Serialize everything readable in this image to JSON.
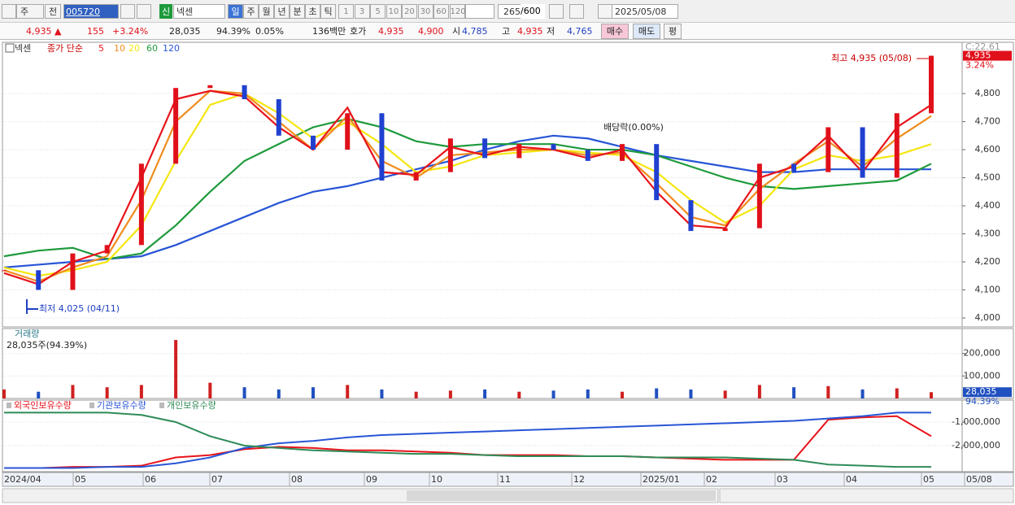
{
  "toolbar": {
    "market": "주",
    "prev": "전",
    "code": "005720",
    "badge": "신",
    "name": "넥센",
    "periods": [
      "일",
      "주",
      "월",
      "년",
      "분",
      "초",
      "틱"
    ],
    "intervals": [
      "1",
      "3",
      "5",
      "10",
      "20",
      "30",
      "60",
      "120"
    ],
    "count": "265",
    "count_max": "/600",
    "date": "2025/05/08"
  },
  "quote": {
    "price": "4,935 ▲",
    "change": "155",
    "change_pct": "+3.24%",
    "volume": "28,035",
    "volume_ratio": "94.39%",
    "turnover": "0.05%",
    "amount": "136백만",
    "ask_label": "호가",
    "ask": "4,935",
    "bid": "4,900",
    "open_label": "시",
    "open": "4,785",
    "high_label": "고",
    "high": "4,935",
    "low_label": "저",
    "low": "4,765",
    "buy": "매수",
    "sell": "매도",
    "avg": "평"
  },
  "x_axis": {
    "labels": [
      "2024/04",
      "05",
      "06",
      "07",
      "08",
      "09",
      "10",
      "11",
      "12",
      "2025/01",
      "02",
      "03",
      "04",
      "05",
      "05/08"
    ]
  },
  "chart_data": [
    {
      "type": "candle",
      "legend_title": "넥센",
      "legend_label": "종가 단순",
      "corner_label": "C:22.61",
      "last_label": "4,935",
      "last_change": "3.24%",
      "values": [
        4170,
        4100,
        4230,
        4260,
        4550,
        4820,
        4830,
        4780,
        4650,
        4600,
        4730,
        4490,
        4520,
        4640,
        4570,
        4620,
        4600,
        4560,
        4620,
        4420,
        4310,
        4320,
        4550,
        4520,
        4680,
        4500,
        4730,
        4935
      ],
      "series": [
        {
          "name": "5",
          "color": "#e8141b",
          "values": [
            4160,
            4120,
            4200,
            4240,
            4500,
            4780,
            4810,
            4790,
            4680,
            4600,
            4750,
            4520,
            4510,
            4610,
            4580,
            4610,
            4600,
            4570,
            4600,
            4450,
            4330,
            4320,
            4500,
            4540,
            4650,
            4520,
            4680,
            4760
          ]
        },
        {
          "name": "10",
          "color": "#f08c1e",
          "values": [
            4170,
            4130,
            4180,
            4220,
            4420,
            4700,
            4810,
            4800,
            4700,
            4600,
            4720,
            4560,
            4500,
            4580,
            4590,
            4600,
            4600,
            4580,
            4590,
            4480,
            4360,
            4330,
            4460,
            4550,
            4630,
            4540,
            4640,
            4720
          ]
        },
        {
          "name": "20",
          "color": "#f5e60f",
          "values": [
            4180,
            4150,
            4170,
            4200,
            4330,
            4560,
            4760,
            4800,
            4730,
            4640,
            4700,
            4620,
            4520,
            4540,
            4580,
            4590,
            4600,
            4590,
            4580,
            4520,
            4420,
            4340,
            4400,
            4530,
            4580,
            4560,
            4580,
            4620
          ]
        },
        {
          "name": "60",
          "color": "#1e9a3c",
          "values": [
            4220,
            4240,
            4250,
            4210,
            4230,
            4330,
            4450,
            4560,
            4620,
            4680,
            4710,
            4680,
            4630,
            4610,
            4620,
            4620,
            4620,
            4600,
            4600,
            4580,
            4540,
            4500,
            4470,
            4460,
            4470,
            4480,
            4490,
            4550
          ]
        },
        {
          "name": "120",
          "color": "#2855d6",
          "values": [
            4180,
            4190,
            4200,
            4210,
            4220,
            4260,
            4310,
            4360,
            4410,
            4450,
            4470,
            4500,
            4530,
            4560,
            4600,
            4630,
            4650,
            4640,
            4610,
            4580,
            4560,
            4540,
            4520,
            4520,
            4530,
            4530,
            4530,
            4530
          ]
        }
      ],
      "ylim": [
        3968,
        4983
      ],
      "yticks": [
        {
          "value": 4000,
          "label": "4,000"
        },
        {
          "value": 4100,
          "label": "4,100"
        },
        {
          "value": 4200,
          "label": "4,200"
        },
        {
          "value": 4300,
          "label": "4,300"
        },
        {
          "value": 4400,
          "label": "4,400"
        },
        {
          "value": 4500,
          "label": "4,500"
        },
        {
          "value": 4600,
          "label": "4,600"
        },
        {
          "value": 4700,
          "label": "4,700"
        },
        {
          "value": 4800,
          "label": "4,800"
        }
      ],
      "annotations": [
        "최고 4,935 (05/08)",
        "최저 4,025 (04/11)",
        "배당락(0.00%)"
      ]
    },
    {
      "type": "bar",
      "title": "거래량",
      "subtitle": "28,035주(94.39%)",
      "last_label": "28,035",
      "last_ratio": "94.39%",
      "values": [
        40000,
        30000,
        60000,
        50000,
        60000,
        260000,
        70000,
        50000,
        40000,
        50000,
        60000,
        40000,
        30000,
        35000,
        40000,
        30000,
        35000,
        40000,
        30000,
        45000,
        40000,
        35000,
        60000,
        50000,
        55000,
        40000,
        45000,
        28035
      ],
      "ylim": [
        0,
        311000
      ],
      "yticks": [
        {
          "value": 100000,
          "label": "100,000"
        },
        {
          "value": 200000,
          "label": "200,000"
        }
      ]
    },
    {
      "type": "line",
      "series": [
        {
          "name": "외국인보유수량",
          "color": "#e8141b",
          "values": [
            -2950000,
            -2950000,
            -2900000,
            -2900000,
            -2850000,
            -2500000,
            -2400000,
            -2150000,
            -2050000,
            -2100000,
            -2200000,
            -2200000,
            -2250000,
            -2300000,
            -2400000,
            -2400000,
            -2400000,
            -2450000,
            -2450000,
            -2500000,
            -2550000,
            -2600000,
            -2600000,
            -2600000,
            -900000,
            -800000,
            -750000,
            -1600000
          ]
        },
        {
          "name": "기관보유수량",
          "color": "#2855d6",
          "values": [
            -2950000,
            -2950000,
            -2950000,
            -2900000,
            -2900000,
            -2750000,
            -2500000,
            -2100000,
            -1900000,
            -1800000,
            -1650000,
            -1550000,
            -1500000,
            -1450000,
            -1400000,
            -1350000,
            -1300000,
            -1250000,
            -1200000,
            -1150000,
            -1100000,
            -1050000,
            -1000000,
            -950000,
            -850000,
            -750000,
            -600000,
            -600000
          ]
        },
        {
          "name": "개인보유수량",
          "color": "#2e8b57",
          "values": [
            -600000,
            -600000,
            -600000,
            -600000,
            -700000,
            -1000000,
            -1600000,
            -2000000,
            -2100000,
            -2200000,
            -2250000,
            -2300000,
            -2350000,
            -2350000,
            -2400000,
            -2450000,
            -2450000,
            -2450000,
            -2450000,
            -2500000,
            -2500000,
            -2500000,
            -2550000,
            -2600000,
            -2800000,
            -2850000,
            -2900000,
            -2900000
          ]
        }
      ],
      "ylim": [
        -3103000,
        -69000
      ],
      "yticks": [
        {
          "value": -1000000,
          "label": "-1,000,000"
        },
        {
          "value": -2000000,
          "label": "-2,000,000"
        }
      ]
    }
  ]
}
